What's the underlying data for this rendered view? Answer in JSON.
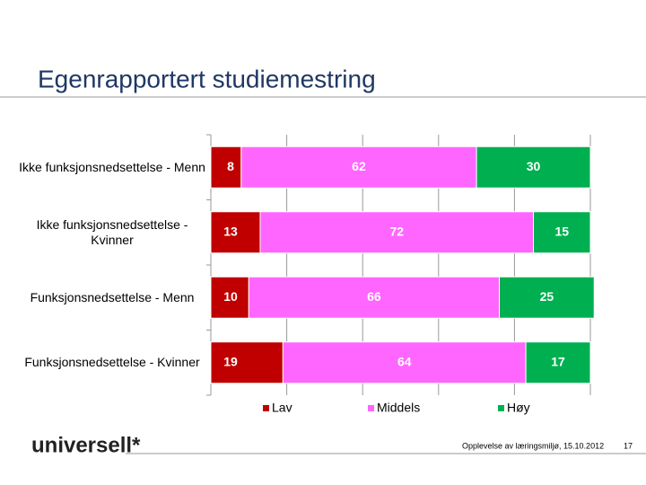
{
  "chart_data": {
    "type": "stacked-bar-horizontal",
    "title": "Egenrapportert studiemestring",
    "categories": [
      "Ikke funksjonsnedsettelse - Menn",
      "Ikke funksjonsnedsettelse - Kvinner",
      "Funksjonsnedsettelse - Menn",
      "Funksjonsnedsettelse - Kvinner"
    ],
    "series": [
      {
        "name": "Lav",
        "color": "#c00000",
        "values": [
          8,
          13,
          10,
          19
        ]
      },
      {
        "name": "Middels",
        "color": "#ff66ff",
        "values": [
          62,
          72,
          66,
          64
        ]
      },
      {
        "name": "Høy",
        "color": "#00b050",
        "values": [
          30,
          15,
          25,
          17
        ]
      }
    ],
    "xlim": [
      0,
      100
    ],
    "xticks": [
      0,
      20,
      40,
      60,
      80,
      100
    ],
    "grid": true,
    "legend": "bottom"
  },
  "slide": {
    "logo": "universell*",
    "footer": "Opplevelse av læringsmiljø, 15.10.2012",
    "page": "17"
  }
}
